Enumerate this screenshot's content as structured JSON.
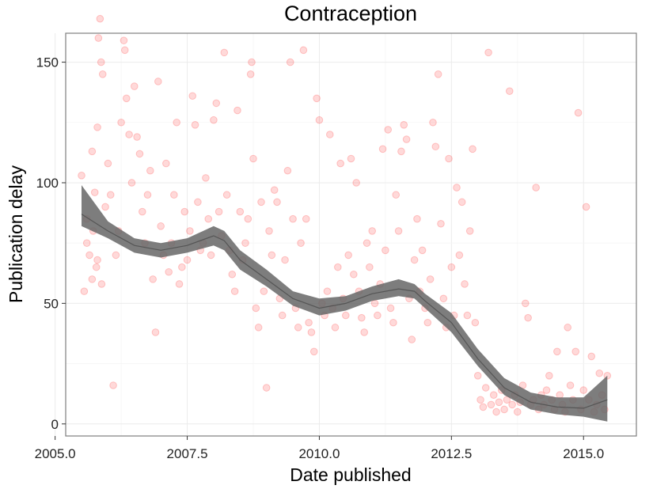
{
  "chart_data": {
    "type": "scatter",
    "title": "Contraception",
    "xlabel": "Date published",
    "ylabel": "Publication delay",
    "xlim": [
      2005.2,
      2016.0
    ],
    "ylim": [
      -5,
      162
    ],
    "x_ticks": [
      2005.0,
      2007.5,
      2010.0,
      2012.5,
      2015.0
    ],
    "x_tick_labels": [
      "2005.0",
      "2007.5",
      "2010.0",
      "2012.5",
      "2015.0"
    ],
    "y_ticks": [
      0,
      50,
      100,
      150
    ],
    "y_tick_labels": [
      "0",
      "50",
      "100",
      "150"
    ],
    "grid": true,
    "point_color": "#ff0000",
    "point_alpha": 0.15,
    "band_color": "#666666",
    "series": [
      {
        "type": "scatter",
        "points": [
          [
            2005.5,
            103
          ],
          [
            2005.6,
            85
          ],
          [
            2005.65,
            70
          ],
          [
            2005.7,
            113
          ],
          [
            2005.75,
            96
          ],
          [
            2005.8,
            123
          ],
          [
            2005.82,
            160
          ],
          [
            2005.85,
            168
          ],
          [
            2005.87,
            150
          ],
          [
            2005.9,
            145
          ],
          [
            2005.78,
            65
          ],
          [
            2005.7,
            60
          ],
          [
            2005.55,
            55
          ],
          [
            2005.6,
            75
          ],
          [
            2005.72,
            80
          ],
          [
            2005.8,
            68
          ],
          [
            2005.88,
            58
          ],
          [
            2005.95,
            90
          ],
          [
            2006.0,
            108
          ],
          [
            2006.05,
            95
          ],
          [
            2006.1,
            16
          ],
          [
            2006.15,
            70
          ],
          [
            2006.2,
            80
          ],
          [
            2006.25,
            125
          ],
          [
            2006.3,
            159
          ],
          [
            2006.32,
            155
          ],
          [
            2006.35,
            135
          ],
          [
            2006.4,
            120
          ],
          [
            2006.45,
            100
          ],
          [
            2006.5,
            140
          ],
          [
            2006.55,
            119
          ],
          [
            2006.6,
            112
          ],
          [
            2006.65,
            88
          ],
          [
            2006.7,
            75
          ],
          [
            2006.75,
            95
          ],
          [
            2006.8,
            105
          ],
          [
            2006.85,
            60
          ],
          [
            2006.9,
            38
          ],
          [
            2006.95,
            142
          ],
          [
            2007.0,
            82
          ],
          [
            2007.05,
            70
          ],
          [
            2007.1,
            108
          ],
          [
            2007.15,
            63
          ],
          [
            2007.2,
            75
          ],
          [
            2007.25,
            95
          ],
          [
            2007.3,
            125
          ],
          [
            2007.35,
            58
          ],
          [
            2007.4,
            65
          ],
          [
            2007.45,
            88
          ],
          [
            2007.5,
            68
          ],
          [
            2007.55,
            80
          ],
          [
            2007.6,
            136
          ],
          [
            2007.65,
            124
          ],
          [
            2007.7,
            92
          ],
          [
            2007.75,
            72
          ],
          [
            2007.8,
            75
          ],
          [
            2007.85,
            102
          ],
          [
            2007.9,
            85
          ],
          [
            2007.95,
            70
          ],
          [
            2008.0,
            126
          ],
          [
            2008.05,
            133
          ],
          [
            2008.1,
            88
          ],
          [
            2008.15,
            78
          ],
          [
            2008.2,
            154
          ],
          [
            2008.25,
            95
          ],
          [
            2008.3,
            72
          ],
          [
            2008.35,
            62
          ],
          [
            2008.4,
            55
          ],
          [
            2008.45,
            130
          ],
          [
            2008.5,
            88
          ],
          [
            2008.55,
            68
          ],
          [
            2008.6,
            75
          ],
          [
            2008.65,
            85
          ],
          [
            2008.7,
            145
          ],
          [
            2008.72,
            150
          ],
          [
            2008.75,
            110
          ],
          [
            2008.8,
            48
          ],
          [
            2008.85,
            40
          ],
          [
            2008.9,
            92
          ],
          [
            2008.95,
            55
          ],
          [
            2009.0,
            15
          ],
          [
            2009.05,
            80
          ],
          [
            2009.1,
            70
          ],
          [
            2009.15,
            97
          ],
          [
            2009.2,
            92
          ],
          [
            2009.25,
            52
          ],
          [
            2009.3,
            45
          ],
          [
            2009.35,
            68
          ],
          [
            2009.4,
            105
          ],
          [
            2009.45,
            150
          ],
          [
            2009.5,
            85
          ],
          [
            2009.55,
            48
          ],
          [
            2009.6,
            40
          ],
          [
            2009.65,
            75
          ],
          [
            2009.7,
            155
          ],
          [
            2009.75,
            85
          ],
          [
            2009.8,
            42
          ],
          [
            2009.85,
            38
          ],
          [
            2009.9,
            30
          ],
          [
            2009.95,
            135
          ],
          [
            2010.0,
            126
          ],
          [
            2010.05,
            50
          ],
          [
            2010.1,
            45
          ],
          [
            2010.15,
            55
          ],
          [
            2010.2,
            120
          ],
          [
            2010.25,
            48
          ],
          [
            2010.3,
            40
          ],
          [
            2010.35,
            65
          ],
          [
            2010.4,
            108
          ],
          [
            2010.45,
            52
          ],
          [
            2010.5,
            45
          ],
          [
            2010.55,
            70
          ],
          [
            2010.6,
            110
          ],
          [
            2010.65,
            62
          ],
          [
            2010.7,
            100
          ],
          [
            2010.75,
            55
          ],
          [
            2010.8,
            44
          ],
          [
            2010.85,
            38
          ],
          [
            2010.9,
            75
          ],
          [
            2010.95,
            65
          ],
          [
            2011.0,
            80
          ],
          [
            2011.05,
            50
          ],
          [
            2011.1,
            45
          ],
          [
            2011.15,
            58
          ],
          [
            2011.2,
            114
          ],
          [
            2011.25,
            72
          ],
          [
            2011.3,
            122
          ],
          [
            2011.35,
            48
          ],
          [
            2011.4,
            42
          ],
          [
            2011.45,
            95
          ],
          [
            2011.5,
            80
          ],
          [
            2011.55,
            113
          ],
          [
            2011.6,
            124
          ],
          [
            2011.65,
            118
          ],
          [
            2011.7,
            52
          ],
          [
            2011.75,
            35
          ],
          [
            2011.8,
            68
          ],
          [
            2011.85,
            85
          ],
          [
            2011.9,
            55
          ],
          [
            2011.95,
            72
          ],
          [
            2012.0,
            48
          ],
          [
            2012.05,
            42
          ],
          [
            2012.1,
            60
          ],
          [
            2012.15,
            125
          ],
          [
            2012.2,
            115
          ],
          [
            2012.25,
            145
          ],
          [
            2012.3,
            83
          ],
          [
            2012.35,
            52
          ],
          [
            2012.4,
            40
          ],
          [
            2012.45,
            110
          ],
          [
            2012.5,
            65
          ],
          [
            2012.55,
            45
          ],
          [
            2012.6,
            98
          ],
          [
            2012.65,
            70
          ],
          [
            2012.7,
            92
          ],
          [
            2012.75,
            58
          ],
          [
            2012.8,
            45
          ],
          [
            2012.85,
            80
          ],
          [
            2012.9,
            114
          ],
          [
            2012.95,
            42
          ],
          [
            2013.0,
            20
          ],
          [
            2013.05,
            10
          ],
          [
            2013.1,
            7
          ],
          [
            2013.15,
            15
          ],
          [
            2013.2,
            154
          ],
          [
            2013.25,
            8
          ],
          [
            2013.3,
            12
          ],
          [
            2013.35,
            5
          ],
          [
            2013.4,
            9
          ],
          [
            2013.45,
            14
          ],
          [
            2013.5,
            6
          ],
          [
            2013.55,
            10
          ],
          [
            2013.6,
            138
          ],
          [
            2013.65,
            8
          ],
          [
            2013.7,
            12
          ],
          [
            2013.75,
            5
          ],
          [
            2013.8,
            9
          ],
          [
            2013.85,
            16
          ],
          [
            2013.9,
            50
          ],
          [
            2013.95,
            44
          ],
          [
            2014.0,
            8
          ],
          [
            2014.05,
            10
          ],
          [
            2014.1,
            98
          ],
          [
            2014.15,
            6
          ],
          [
            2014.2,
            12
          ],
          [
            2014.25,
            8
          ],
          [
            2014.3,
            14
          ],
          [
            2014.35,
            20
          ],
          [
            2014.4,
            10
          ],
          [
            2014.45,
            6
          ],
          [
            2014.5,
            30
          ],
          [
            2014.55,
            12
          ],
          [
            2014.6,
            8
          ],
          [
            2014.65,
            5
          ],
          [
            2014.7,
            40
          ],
          [
            2014.75,
            16
          ],
          [
            2014.8,
            10
          ],
          [
            2014.85,
            30
          ],
          [
            2014.9,
            129
          ],
          [
            2014.95,
            6
          ],
          [
            2015.0,
            14
          ],
          [
            2015.05,
            90
          ],
          [
            2015.1,
            10
          ],
          [
            2015.15,
            28
          ],
          [
            2015.2,
            5
          ],
          [
            2015.25,
            8
          ],
          [
            2015.3,
            21
          ],
          [
            2015.35,
            12
          ],
          [
            2015.4,
            6
          ],
          [
            2015.45,
            20
          ]
        ]
      },
      {
        "type": "smooth",
        "x": [
          2005.5,
          2006.0,
          2006.5,
          2007.0,
          2007.5,
          2008.0,
          2008.2,
          2008.5,
          2009.0,
          2009.5,
          2010.0,
          2010.5,
          2011.0,
          2011.5,
          2011.8,
          2012.0,
          2012.5,
          2013.0,
          2013.5,
          2014.0,
          2014.5,
          2015.0,
          2015.45
        ],
        "y": [
          87,
          80,
          74,
          72,
          74,
          78,
          76,
          68,
          60,
          52,
          48,
          50,
          54,
          56,
          55,
          51,
          42,
          27,
          15,
          9,
          7,
          6.5,
          10
        ],
        "lower": [
          82,
          77,
          71,
          69,
          71,
          74,
          72,
          64,
          57,
          49,
          45,
          47,
          51,
          53,
          52,
          48,
          38,
          24,
          12,
          6,
          4,
          3,
          1
        ],
        "upper": [
          99,
          84,
          77,
          75,
          77,
          82,
          80,
          72,
          64,
          55,
          52,
          53,
          57,
          60,
          58,
          54,
          46,
          31,
          19,
          13,
          11,
          11,
          20
        ]
      }
    ]
  }
}
